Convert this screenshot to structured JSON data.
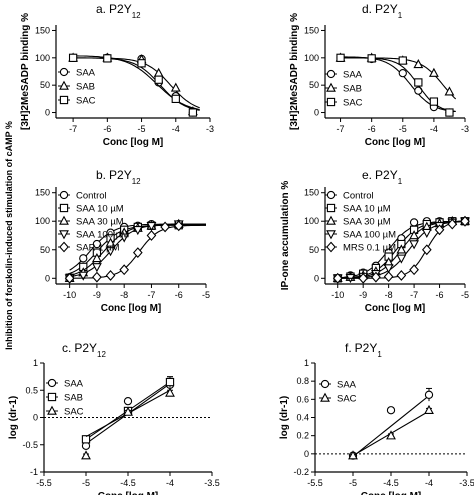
{
  "chart_data": [
    {
      "id": "a",
      "type": "scatter",
      "title_letter": "a.",
      "title_base": "P2Y",
      "title_sub": "12",
      "ylabel": "[3H]2MeSADP binding %",
      "xlabel": "Conc [log M]",
      "xlim": [
        -7.5,
        -3
      ],
      "ylim": [
        -10,
        160
      ],
      "xticks": [
        -7,
        -6,
        -5,
        -4,
        -3
      ],
      "yticks": [
        0,
        50,
        100,
        150
      ],
      "legend": [
        "SAA",
        "SAB",
        "SAC"
      ],
      "series": [
        {
          "name": "SAA",
          "marker": "circle",
          "x": [
            -7,
            -6,
            -5,
            -4.5,
            -4,
            -3.5
          ],
          "y": [
            100,
            100,
            98,
            55,
            30,
            0
          ],
          "fit": {
            "bottom": 0,
            "top": 100,
            "logec50": -4.45,
            "hill": 1.2
          }
        },
        {
          "name": "SAB",
          "marker": "triangle",
          "x": [
            -7,
            -6,
            -5,
            -4.5,
            -4,
            -3.5
          ],
          "y": [
            100,
            100,
            97,
            72,
            45,
            2
          ],
          "fit": {
            "bottom": 0,
            "top": 100,
            "logec50": -4.15,
            "hill": 1.2
          }
        },
        {
          "name": "SAC",
          "marker": "square",
          "x": [
            -7,
            -6,
            -5,
            -4.5,
            -4,
            -3.5
          ],
          "y": [
            100,
            99,
            90,
            60,
            25,
            0
          ],
          "fit": {
            "bottom": 0,
            "top": 104,
            "logec50": -4.55,
            "hill": 1.0
          }
        }
      ]
    },
    {
      "id": "d",
      "type": "scatter",
      "title_letter": "d.",
      "title_base": "P2Y",
      "title_sub": "1",
      "ylabel": "[3H]2MeSADP binding %",
      "xlabel": "Conc [log M]",
      "xlim": [
        -7.5,
        -3
      ],
      "ylim": [
        -10,
        160
      ],
      "xticks": [
        -7,
        -6,
        -5,
        -4,
        -3
      ],
      "yticks": [
        0,
        50,
        100,
        150
      ],
      "legend": [
        "SAA",
        "SAB",
        "SAC"
      ],
      "series": [
        {
          "name": "SAA",
          "marker": "circle",
          "x": [
            -7,
            -6,
            -5,
            -4.5,
            -4,
            -3.5
          ],
          "y": [
            100,
            98,
            72,
            40,
            10,
            0
          ],
          "fit": {
            "bottom": 0,
            "top": 102,
            "logec50": -4.75,
            "hill": 1.2
          }
        },
        {
          "name": "SAB",
          "marker": "triangle",
          "x": [
            -7,
            -6,
            -5,
            -4.5,
            -4,
            -3.5
          ],
          "y": [
            100,
            100,
            95,
            88,
            72,
            38
          ],
          "fit": {
            "bottom": 0,
            "top": 100,
            "logec50": -3.7,
            "hill": 1.2
          }
        },
        {
          "name": "SAC",
          "marker": "square",
          "x": [
            -7,
            -6,
            -5,
            -4.5,
            -4,
            -3.5
          ],
          "y": [
            100,
            99,
            95,
            55,
            20,
            0
          ],
          "fit": {
            "bottom": 0,
            "top": 100,
            "logec50": -4.5,
            "hill": 1.4
          }
        }
      ]
    },
    {
      "id": "b",
      "type": "scatter",
      "title_letter": "b.",
      "title_base": "P2Y",
      "title_sub": "12",
      "ylabel": "Inhibition of forskolin-induced stimulation of cAMP %",
      "xlabel": "Conc [log M]",
      "xlim": [
        -10.5,
        -5
      ],
      "ylim": [
        -10,
        160
      ],
      "xticks": [
        -10,
        -9,
        -8,
        -7,
        -6,
        -5
      ],
      "yticks": [
        0,
        50,
        100,
        150
      ],
      "legend": [
        "Control",
        "SAA 10 µM",
        "SAA 30 µM",
        "SAA 100 µM",
        "SAR 1 µM"
      ],
      "series": [
        {
          "name": "Control",
          "marker": "circle",
          "x": [
            -10,
            -9.5,
            -9,
            -8.5,
            -8,
            -7.5,
            -7,
            -6
          ],
          "y": [
            2,
            35,
            60,
            80,
            90,
            92,
            95,
            95
          ],
          "fit": {
            "bottom": 0,
            "top": 95,
            "logec50": -9.25,
            "hill": 1.0
          }
        },
        {
          "name": "SAA 10 µM",
          "marker": "square",
          "x": [
            -10,
            -9.5,
            -9,
            -8.5,
            -8,
            -7.5,
            -7,
            -6
          ],
          "y": [
            1,
            20,
            45,
            70,
            85,
            90,
            92,
            93
          ],
          "fit": {
            "bottom": 0,
            "top": 93,
            "logec50": -9.0,
            "hill": 1.0
          }
        },
        {
          "name": "SAA 30 µM",
          "marker": "triangle",
          "x": [
            -10,
            -9.5,
            -9,
            -8.5,
            -8,
            -7.5,
            -7,
            -6
          ],
          "y": [
            0,
            10,
            35,
            62,
            80,
            88,
            92,
            95
          ],
          "fit": {
            "bottom": 0,
            "top": 94,
            "logec50": -8.75,
            "hill": 1.0
          }
        },
        {
          "name": "SAA 100 µM",
          "marker": "triangle-down",
          "x": [
            -10,
            -9.5,
            -9,
            -8.5,
            -8,
            -7.5,
            -7,
            -6
          ],
          "y": [
            0,
            5,
            20,
            48,
            72,
            85,
            92,
            95
          ],
          "fit": {
            "bottom": 0,
            "top": 95,
            "logec50": -8.5,
            "hill": 1.0
          }
        },
        {
          "name": "SAR 1 µM",
          "marker": "diamond",
          "x": [
            -10,
            -9,
            -8.5,
            -8,
            -7.5,
            -7,
            -6.5,
            -6
          ],
          "y": [
            0,
            2,
            5,
            15,
            45,
            75,
            90,
            92
          ],
          "fit": {
            "bottom": 0,
            "top": 93,
            "logec50": -7.45,
            "hill": 1.2
          }
        }
      ]
    },
    {
      "id": "e",
      "type": "scatter",
      "title_letter": "e.",
      "title_base": "P2Y",
      "title_sub": "1",
      "ylabel": "IP-one accumulation %",
      "xlabel": "Conc [log M]",
      "xlim": [
        -10.5,
        -5
      ],
      "ylim": [
        -10,
        160
      ],
      "xticks": [
        -10,
        -9,
        -8,
        -7,
        -6,
        -5
      ],
      "yticks": [
        0,
        50,
        100,
        150
      ],
      "legend": [
        "Control",
        "SAA 10 µM",
        "SAA 30 µM",
        "SAA 100 µM",
        "MRS 0.1 µM"
      ],
      "series": [
        {
          "name": "Control",
          "marker": "circle",
          "x": [
            -10,
            -9.5,
            -9,
            -8.5,
            -8,
            -7.5,
            -7,
            -6.5,
            -6,
            -5.5,
            -5
          ],
          "y": [
            0,
            5,
            10,
            22,
            45,
            70,
            98,
            100,
            100,
            100,
            100
          ],
          "fit": {
            "bottom": 0,
            "top": 100,
            "logec50": -8.0,
            "hill": 1.0
          }
        },
        {
          "name": "SAA 10 µM",
          "marker": "square",
          "x": [
            -10,
            -9.5,
            -9,
            -8.5,
            -8,
            -7.5,
            -7,
            -6.5,
            -6,
            -5.5,
            -5
          ],
          "y": [
            0,
            3,
            8,
            18,
            38,
            60,
            85,
            95,
            98,
            100,
            100
          ],
          "fit": {
            "bottom": 0,
            "top": 100,
            "logec50": -7.7,
            "hill": 1.0
          }
        },
        {
          "name": "SAA 30 µM",
          "marker": "triangle",
          "x": [
            -10,
            -9.5,
            -9,
            -8.5,
            -8,
            -7.5,
            -7,
            -6.5,
            -6,
            -5.5,
            -5
          ],
          "y": [
            0,
            2,
            5,
            12,
            28,
            50,
            75,
            90,
            96,
            100,
            100
          ],
          "fit": {
            "bottom": 0,
            "top": 100,
            "logec50": -7.5,
            "hill": 1.0
          }
        },
        {
          "name": "SAA 100 µM",
          "marker": "triangle-down",
          "x": [
            -10,
            -9.5,
            -9,
            -8.5,
            -8,
            -7.5,
            -7,
            -6.5,
            -6,
            -5.5,
            -5
          ],
          "y": [
            0,
            1,
            3,
            8,
            18,
            35,
            60,
            80,
            92,
            98,
            100
          ],
          "fit": {
            "bottom": 0,
            "top": 100,
            "logec50": -7.2,
            "hill": 1.0
          }
        },
        {
          "name": "MRS 0.1 µM",
          "marker": "diamond",
          "x": [
            -10,
            -9,
            -8.5,
            -8,
            -7.5,
            -7,
            -6.5,
            -6,
            -5.5,
            -5
          ],
          "y": [
            0,
            0,
            2,
            3,
            5,
            15,
            50,
            85,
            95,
            100
          ],
          "fit": {
            "bottom": 0,
            "top": 102,
            "logec50": -6.5,
            "hill": 1.3
          }
        }
      ]
    },
    {
      "id": "c",
      "type": "scatter",
      "title_letter": "c.",
      "title_base": "P2Y",
      "title_sub": "12",
      "ylabel": "log (dr-1)",
      "xlabel": "Conc [log M]",
      "xlim": [
        -5.5,
        -3.5
      ],
      "ylim": [
        -1,
        1
      ],
      "xticks": [
        -5.5,
        -5.0,
        -4.5,
        -4.0,
        -3.5
      ],
      "yticks": [
        -1.0,
        -0.5,
        0.0,
        0.5,
        1.0
      ],
      "reference_y": 0,
      "legend": [
        "SAA",
        "SAB",
        "SAC"
      ],
      "series": [
        {
          "name": "SAA",
          "marker": "circle",
          "x": [
            -5.0,
            -4.5,
            -4.0
          ],
          "y": [
            -0.52,
            0.3,
            0.6
          ],
          "err": [
            0.04,
            0.03,
            0.12
          ],
          "fit_line": [
            [
              -5.0,
              -0.48
            ],
            [
              -4.0,
              0.62
            ]
          ]
        },
        {
          "name": "SAB",
          "marker": "square",
          "x": [
            -5.0,
            -4.5,
            -4.0
          ],
          "y": [
            -0.4,
            0.12,
            0.65
          ],
          "err": [
            0.03,
            0.03,
            0.1
          ],
          "fit_line": [
            [
              -5.0,
              -0.4
            ],
            [
              -4.0,
              0.65
            ]
          ]
        },
        {
          "name": "SAC",
          "marker": "triangle",
          "x": [
            -5.0,
            -4.5,
            -4.0
          ],
          "y": [
            -0.7,
            0.1,
            0.45
          ],
          "err": [
            0.03,
            0.03,
            0.05
          ],
          "fit_line": [
            [
              -5.0,
              -0.35
            ],
            [
              -4.0,
              0.5
            ]
          ]
        }
      ]
    },
    {
      "id": "f",
      "type": "scatter",
      "title_letter": "f.",
      "title_base": "P2Y",
      "title_sub": "1",
      "ylabel": "log (dr-1)",
      "xlabel": "Conc [log M]",
      "xlim": [
        -5.5,
        -3.5
      ],
      "ylim": [
        -0.2,
        1.0
      ],
      "xticks": [
        -5.5,
        -5.0,
        -4.5,
        -4.0,
        -3.5
      ],
      "yticks": [
        -0.2,
        0.0,
        0.2,
        0.4,
        0.6,
        0.8,
        1.0
      ],
      "reference_y": 0,
      "legend": [
        "SAA",
        "SAC"
      ],
      "series": [
        {
          "name": "SAA",
          "marker": "circle",
          "x": [
            -5.0,
            -4.5,
            -4.0
          ],
          "y": [
            -0.02,
            0.48,
            0.65
          ],
          "err": [
            0.01,
            0.02,
            0.07
          ],
          "fit_line": [
            [
              -5.0,
              -0.03
            ],
            [
              -4.0,
              0.64
            ]
          ]
        },
        {
          "name": "SAC",
          "marker": "triangle",
          "x": [
            -5.0,
            -4.5,
            -4.0
          ],
          "y": [
            -0.02,
            0.2,
            0.48
          ],
          "err": [
            0.01,
            0.02,
            0.02
          ],
          "fit_line": [
            [
              -5.0,
              -0.02
            ],
            [
              -4.0,
              0.47
            ]
          ]
        }
      ]
    }
  ]
}
